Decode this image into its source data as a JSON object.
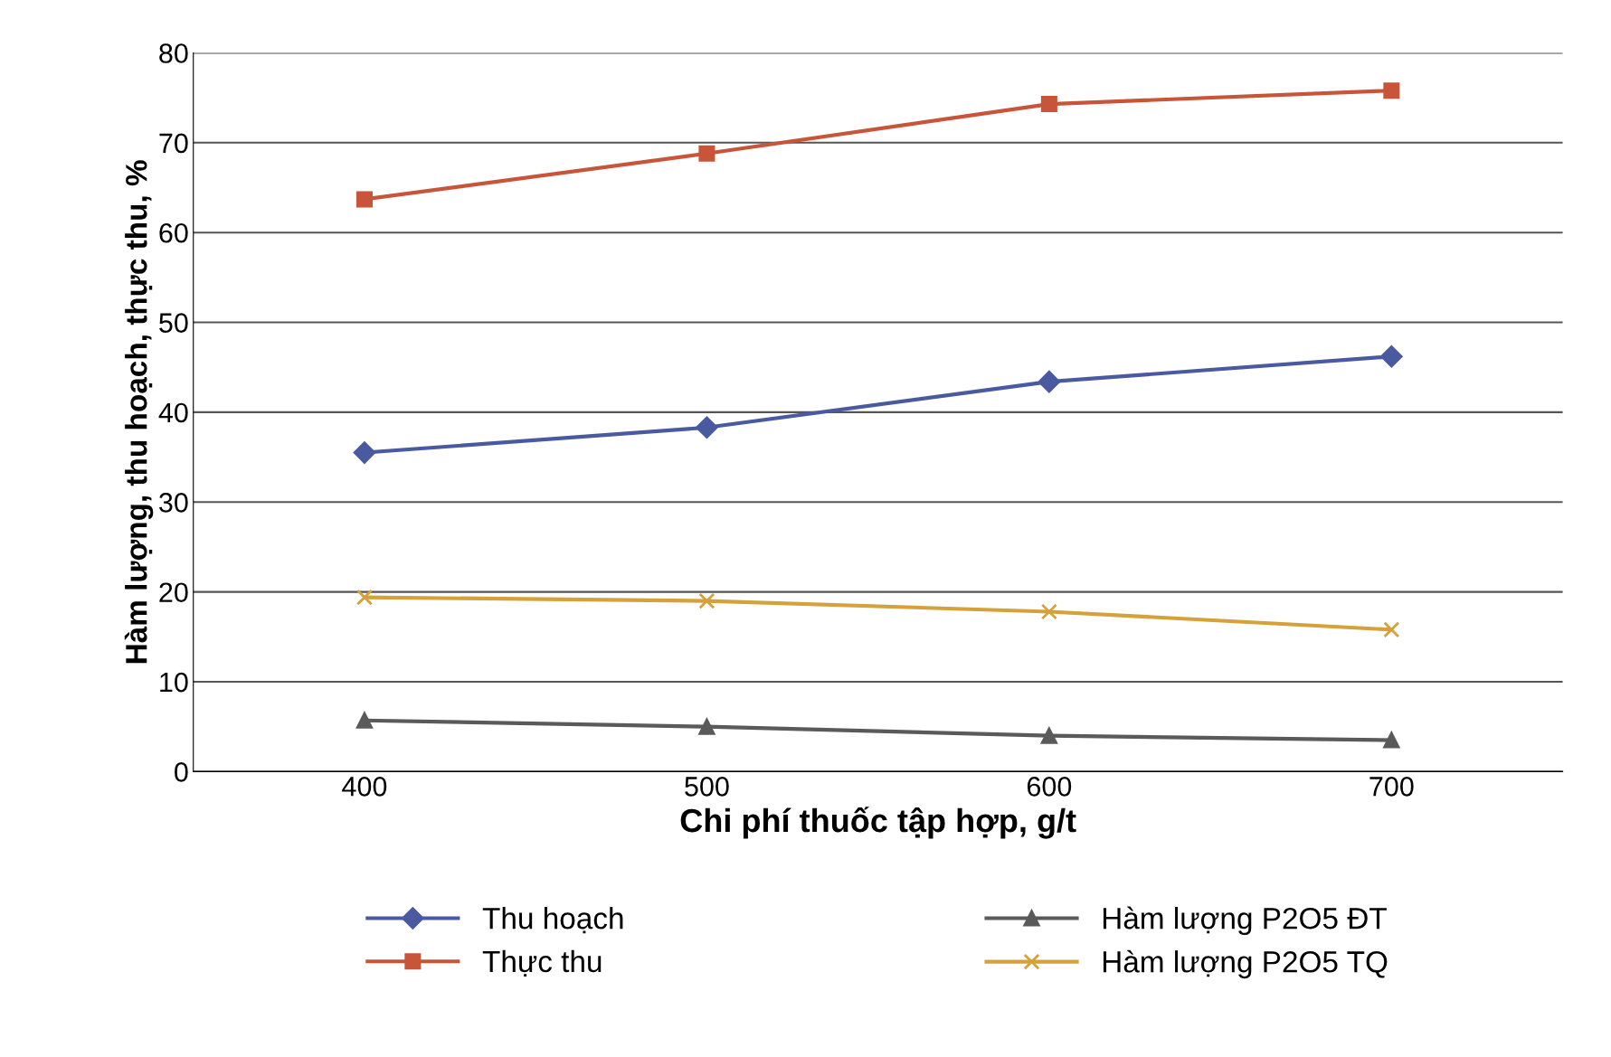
{
  "chart_data": {
    "type": "line",
    "xlabel": "Chi phí thuốc tập hợp, g/t",
    "ylabel": "Hàm lượng, thu hoạch, thực thu, %",
    "categories": [
      "400",
      "500",
      "600",
      "700"
    ],
    "series": [
      {
        "name": "Thu hoạch",
        "color": "#4a5aa0",
        "marker": "diamond",
        "values": [
          35.5,
          38.3,
          43.4,
          46.2
        ]
      },
      {
        "name": "Thực thu",
        "color": "#c8553a",
        "marker": "square",
        "values": [
          63.7,
          68.8,
          74.3,
          75.8
        ]
      },
      {
        "name": "Hàm lượng P2O5 ĐT",
        "color": "#5a5a5a",
        "marker": "triangle",
        "values": [
          5.7,
          5.0,
          4.0,
          3.5
        ]
      },
      {
        "name": "Hàm lượng P2O5 TQ",
        "color": "#d4a13a",
        "marker": "cross",
        "values": [
          19.4,
          19.0,
          17.8,
          15.8
        ]
      }
    ],
    "ylim": [
      0,
      80
    ],
    "yticks": [
      0,
      10,
      20,
      30,
      40,
      50,
      60,
      70,
      80
    ],
    "grid": "y",
    "legend": "bottom",
    "line_style": "solid"
  }
}
